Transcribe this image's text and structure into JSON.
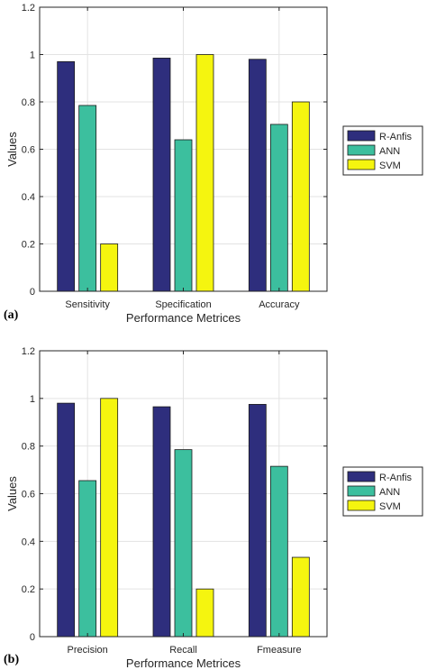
{
  "chart_data": [
    {
      "type": "bar",
      "panel_label": "(a)",
      "categories": [
        "Sensitivity",
        "Specification",
        "Accuracy"
      ],
      "series": [
        {
          "name": "R-Anfis",
          "color": "#2e2e7d",
          "values": [
            0.97,
            0.985,
            0.98
          ]
        },
        {
          "name": "ANN",
          "color": "#3cbf9e",
          "values": [
            0.785,
            0.64,
            0.705
          ]
        },
        {
          "name": "SVM",
          "color": "#f5f50f",
          "values": [
            0.2,
            1.0,
            0.8
          ]
        }
      ],
      "xlabel": "Performance Metrices",
      "ylabel": "Values",
      "ylim": [
        0,
        1.2
      ],
      "yticks": [
        "0",
        "0.2",
        "0.4",
        "0.6",
        "0.8",
        "1",
        "1.2"
      ],
      "grid": true,
      "legend": "right"
    },
    {
      "type": "bar",
      "panel_label": "(b)",
      "categories": [
        "Precision",
        "Recall",
        "Fmeasure"
      ],
      "series": [
        {
          "name": "R-Anfis",
          "color": "#2e2e7d",
          "values": [
            0.98,
            0.965,
            0.975
          ]
        },
        {
          "name": "ANN",
          "color": "#3cbf9e",
          "values": [
            0.655,
            0.785,
            0.715
          ]
        },
        {
          "name": "SVM",
          "color": "#f5f50f",
          "values": [
            1.0,
            0.2,
            0.333
          ]
        }
      ],
      "xlabel": "Performance Metrices",
      "ylabel": "Values",
      "ylim": [
        0,
        1.2
      ],
      "yticks": [
        "0",
        "0.2",
        "0.4",
        "0.6",
        "0.8",
        "1",
        "1.2"
      ],
      "grid": true,
      "legend": "right"
    }
  ]
}
